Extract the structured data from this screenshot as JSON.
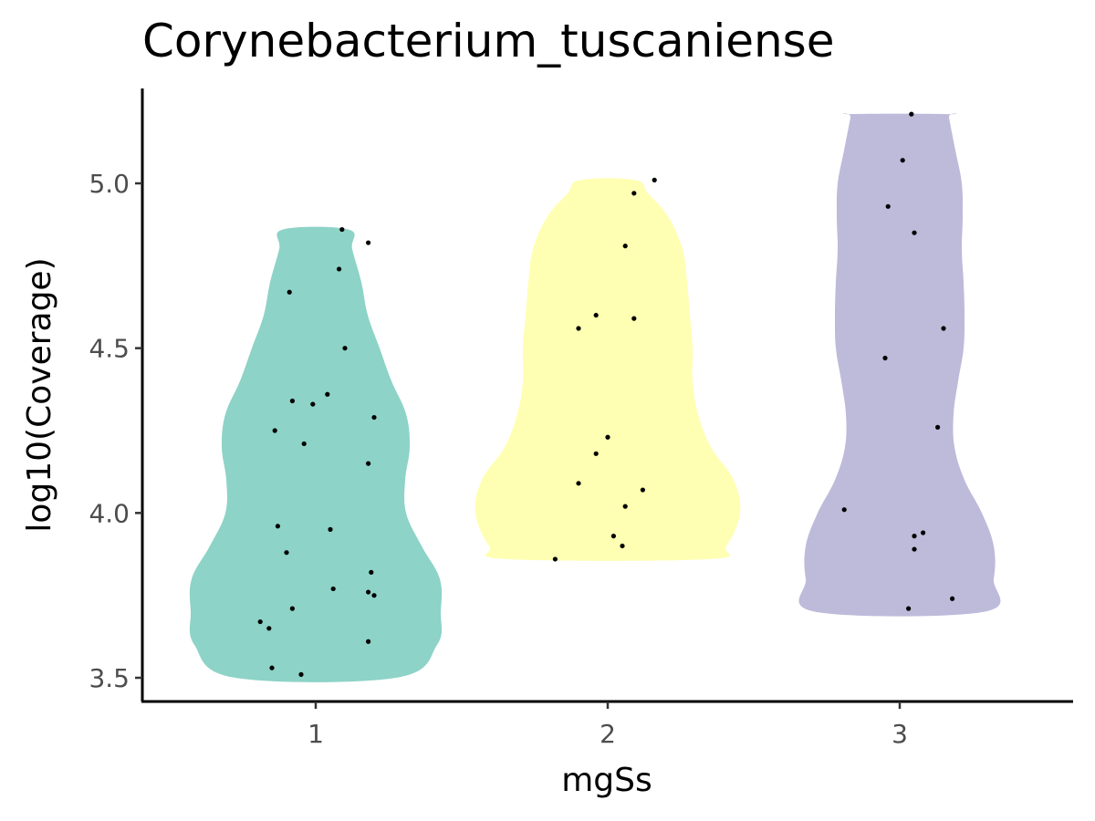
{
  "chart_data": {
    "type": "violin",
    "title": "Corynebacterium_tuscaniense",
    "xlabel": "mgSs",
    "ylabel": "log10(Coverage)",
    "categories": [
      "1",
      "2",
      "3"
    ],
    "ylim": [
      3.43,
      5.29
    ],
    "yticks": [
      "3.5",
      "4.0",
      "4.5",
      "5.0"
    ],
    "grid": false,
    "legend": "none",
    "groups": [
      {
        "category": "1",
        "color": "#8DD3C7",
        "points": [
          {
            "x": 1.09,
            "y": 4.86
          },
          {
            "x": 1.18,
            "y": 4.82
          },
          {
            "x": 1.08,
            "y": 4.74
          },
          {
            "x": 0.91,
            "y": 4.67
          },
          {
            "x": 1.1,
            "y": 4.5
          },
          {
            "x": 1.04,
            "y": 4.36
          },
          {
            "x": 0.92,
            "y": 4.34
          },
          {
            "x": 0.99,
            "y": 4.33
          },
          {
            "x": 1.2,
            "y": 4.29
          },
          {
            "x": 0.86,
            "y": 4.25
          },
          {
            "x": 0.96,
            "y": 4.21
          },
          {
            "x": 1.18,
            "y": 4.15
          },
          {
            "x": 0.87,
            "y": 3.96
          },
          {
            "x": 1.05,
            "y": 3.95
          },
          {
            "x": 0.9,
            "y": 3.88
          },
          {
            "x": 1.19,
            "y": 3.82
          },
          {
            "x": 1.06,
            "y": 3.77
          },
          {
            "x": 1.18,
            "y": 3.76
          },
          {
            "x": 1.2,
            "y": 3.75
          },
          {
            "x": 0.92,
            "y": 3.71
          },
          {
            "x": 0.81,
            "y": 3.67
          },
          {
            "x": 0.84,
            "y": 3.65
          },
          {
            "x": 1.18,
            "y": 3.61
          },
          {
            "x": 0.85,
            "y": 3.53
          },
          {
            "x": 0.95,
            "y": 3.51
          }
        ]
      },
      {
        "category": "2",
        "color": "#FFFFB3",
        "points": [
          {
            "x": 2.16,
            "y": 5.01
          },
          {
            "x": 2.09,
            "y": 4.97
          },
          {
            "x": 2.06,
            "y": 4.81
          },
          {
            "x": 1.96,
            "y": 4.6
          },
          {
            "x": 2.09,
            "y": 4.59
          },
          {
            "x": 1.9,
            "y": 4.56
          },
          {
            "x": 2.0,
            "y": 4.23
          },
          {
            "x": 1.96,
            "y": 4.18
          },
          {
            "x": 1.9,
            "y": 4.09
          },
          {
            "x": 2.12,
            "y": 4.07
          },
          {
            "x": 2.06,
            "y": 4.02
          },
          {
            "x": 2.02,
            "y": 3.93
          },
          {
            "x": 2.05,
            "y": 3.9
          },
          {
            "x": 1.82,
            "y": 3.86
          }
        ]
      },
      {
        "category": "3",
        "color": "#BEBADA",
        "points": [
          {
            "x": 3.04,
            "y": 5.21
          },
          {
            "x": 3.01,
            "y": 5.07
          },
          {
            "x": 2.96,
            "y": 4.93
          },
          {
            "x": 3.05,
            "y": 4.85
          },
          {
            "x": 3.15,
            "y": 4.56
          },
          {
            "x": 2.95,
            "y": 4.47
          },
          {
            "x": 3.13,
            "y": 4.26
          },
          {
            "x": 2.81,
            "y": 4.01
          },
          {
            "x": 3.08,
            "y": 3.94
          },
          {
            "x": 3.05,
            "y": 3.93
          },
          {
            "x": 3.05,
            "y": 3.89
          },
          {
            "x": 3.18,
            "y": 3.74
          },
          {
            "x": 3.03,
            "y": 3.71
          }
        ]
      }
    ]
  }
}
